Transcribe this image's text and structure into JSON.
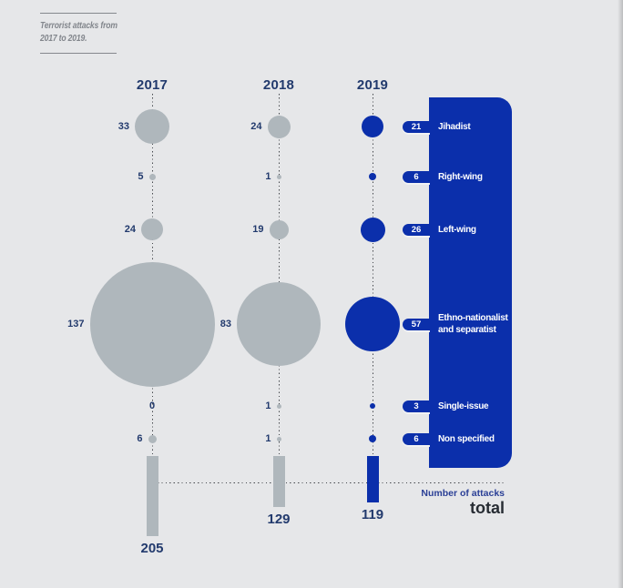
{
  "title": {
    "line1": "Terrorist attacks from",
    "line2": "2017 to 2019."
  },
  "footer": {
    "axis_label": "Number of attacks",
    "total_label": "total"
  },
  "colors": {
    "background": "#e6e7e9",
    "bubble_gray": "#afb7bc",
    "accent_blue": "#0b2fab",
    "navy_text": "#223a6d",
    "title_gray": "#82868c",
    "axis_label_blue": "#2a3f96",
    "total_text": "#272c33",
    "legend_text": "#ffffff"
  },
  "chart_data": {
    "type": "bubble",
    "title": "Terrorist attacks from 2017 to 2019.",
    "columns": [
      "2017",
      "2018",
      "2019"
    ],
    "rows": [
      {
        "category": "Jihadist",
        "values": [
          33,
          24,
          21
        ]
      },
      {
        "category": "Right-wing",
        "values": [
          5,
          1,
          6
        ]
      },
      {
        "category": "Left-wing",
        "values": [
          24,
          19,
          26
        ]
      },
      {
        "category": "Ethno-nationalist and separatist",
        "values": [
          137,
          83,
          57
        ]
      },
      {
        "category": "Single-issue",
        "values": [
          0,
          1,
          3
        ]
      },
      {
        "category": "Non specified",
        "values": [
          6,
          1,
          6
        ]
      }
    ],
    "totals": [
      205,
      129,
      119
    ],
    "axis_label": "Number of attacks",
    "total_label": "total",
    "highlight_column": "2019",
    "legend": {
      "position": "right",
      "pill_values_from_column": "2019",
      "items": [
        {
          "lines": [
            "Jihadist"
          ]
        },
        {
          "lines": [
            "Right-wing"
          ]
        },
        {
          "lines": [
            "Left-wing"
          ]
        },
        {
          "lines": [
            "Ethno-nationalist",
            "and separatist"
          ]
        },
        {
          "lines": [
            "Single-issue"
          ]
        },
        {
          "lines": [
            "Non specified"
          ]
        }
      ]
    }
  }
}
